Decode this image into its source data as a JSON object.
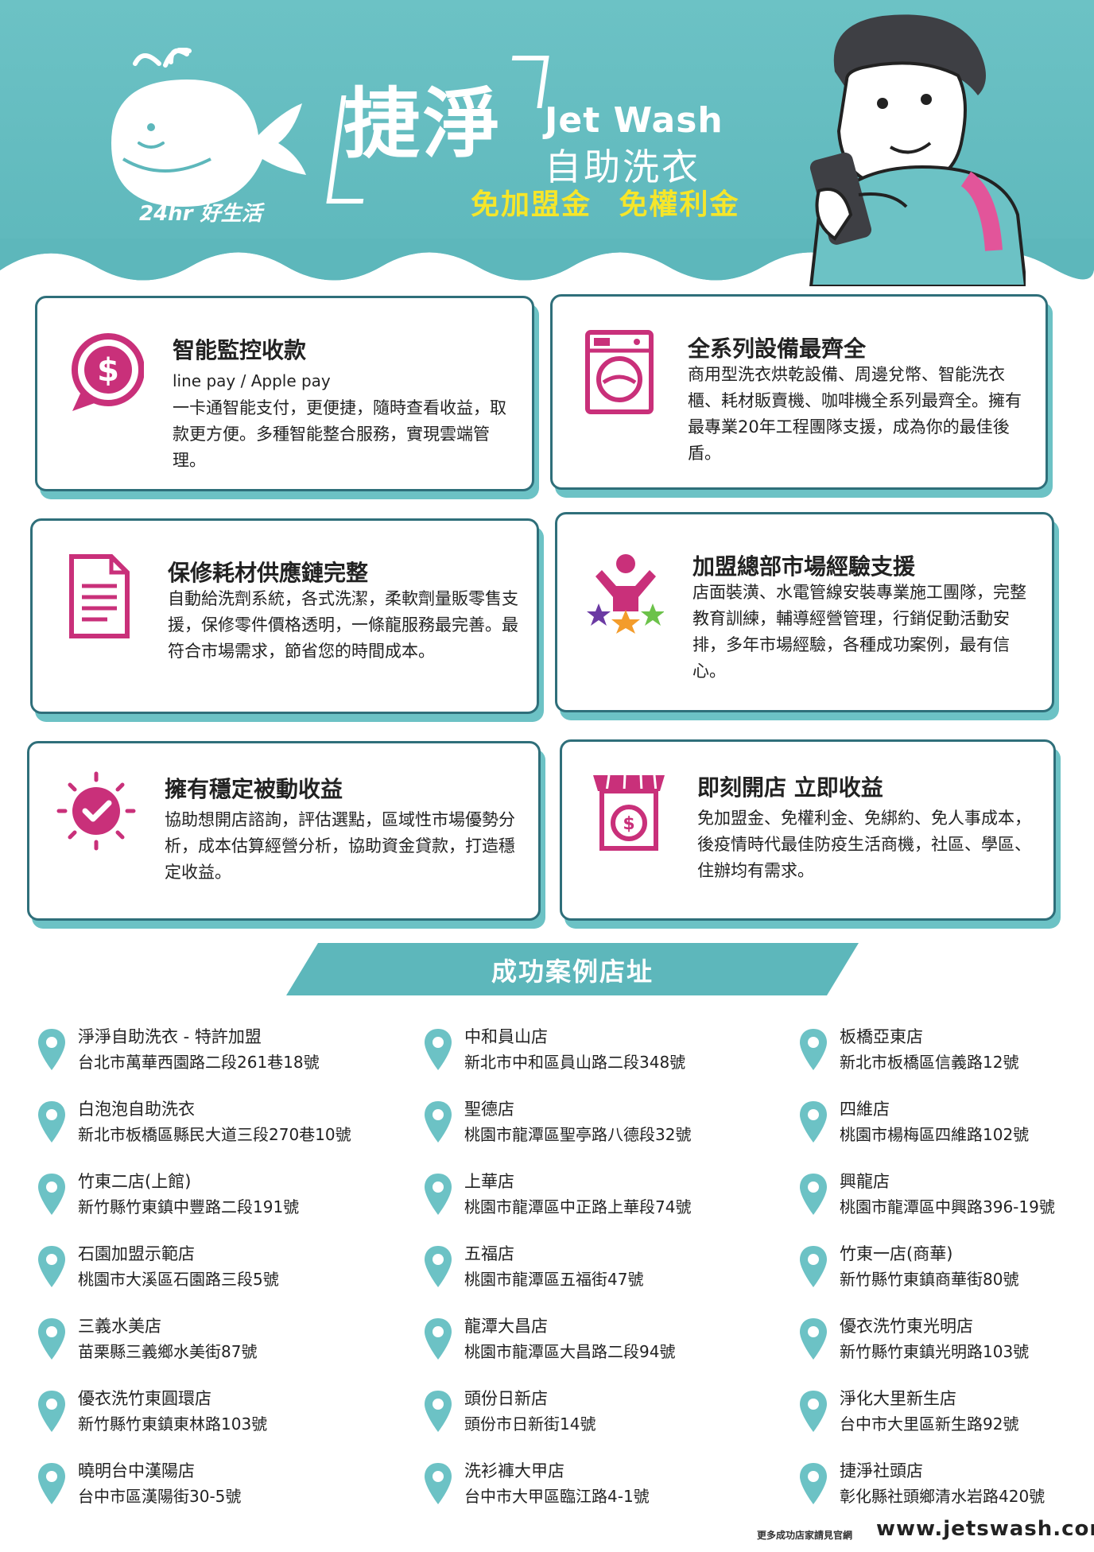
{
  "header": {
    "tagline": "24hr 好生活",
    "brand_cn": "捷淨",
    "brand_en": "Jet Wash",
    "brand_sub": "自助洗衣",
    "slogan": "免加盟金 免權利金"
  },
  "features": [
    {
      "title": "智能監控收款",
      "subtitle": "line pay / Apple pay",
      "body": "一卡通智能支付，更便捷，隨時查看收益，取款更方便。多種智能整合服務，實現雲端管理。",
      "icon": "dollar-speech-bubble-icon"
    },
    {
      "title": "全系列設備最齊全",
      "subtitle": "",
      "body": "商用型洗衣烘乾設備、周邊兌幣、智能洗衣櫃、耗材販賣機、咖啡機全系列最齊全。擁有最專業20年工程團隊支援，成為你的最佳後盾。",
      "icon": "washing-machine-icon"
    },
    {
      "title": "保修耗材供應鏈完整",
      "subtitle": "",
      "body": "自動給洗劑系統，各式洗潔，柔軟劑量販零售支援，保修零件價格透明，一條龍服務最完善。最符合市場需求，節省您的時間成本。",
      "icon": "document-icon"
    },
    {
      "title": "加盟總部市場經驗支援",
      "subtitle": "",
      "body": "店面裝潢、水電管線安裝專業施工團隊，完整教育訓練，輔導經營管理，行銷促動活動安排，多年市場經驗，各種成功案例，最有信心。",
      "icon": "person-stars-icon"
    },
    {
      "title": "擁有穩定被動收益",
      "subtitle": "",
      "body": "協助想開店諮詢，評估選點，區域性市場優勢分析，成本估算經營分析，協助資金貸款，打造穩定收益。",
      "icon": "check-badge-icon"
    },
    {
      "title": "即刻開店 立即收益",
      "subtitle": "",
      "body": "免加盟金、免權利金、免綁約、免人事成本，後疫情時代最佳防疫生活商機，社區、學區、住辦均有需求。",
      "icon": "store-washer-icon"
    }
  ],
  "stores_section": {
    "title": "成功案例店址",
    "columns": [
      [
        {
          "name": "淨淨自助洗衣 - 特許加盟",
          "address": "台北市萬華西園路二段261巷18號"
        },
        {
          "name": "白泡泡自助洗衣",
          "address": "新北市板橋區縣民大道三段270巷10號"
        },
        {
          "name": "竹東二店(上館)",
          "address": "新竹縣竹東鎮中豐路二段191號"
        },
        {
          "name": "石園加盟示範店",
          "address": "桃園市大溪區石園路三段5號"
        },
        {
          "name": "三義水美店",
          "address": "苗栗縣三義鄉水美街87號"
        },
        {
          "name": "優衣洗竹東圓環店",
          "address": "新竹縣竹東鎮東林路103號"
        },
        {
          "name": "曉明台中漢陽店",
          "address": "台中市區漢陽街30-5號"
        }
      ],
      [
        {
          "name": "中和員山店",
          "address": "新北市中和區員山路二段348號"
        },
        {
          "name": "聖德店",
          "address": "桃園市龍潭區聖亭路八德段32號"
        },
        {
          "name": "上華店",
          "address": "桃園市龍潭區中正路上華段74號"
        },
        {
          "name": "五福店",
          "address": "桃園市龍潭區五福街47號"
        },
        {
          "name": "龍潭大昌店",
          "address": "桃園市龍潭區大昌路二段94號"
        },
        {
          "name": "頭份日新店",
          "address": "頭份市日新街14號"
        },
        {
          "name": "洗衫褲大甲店",
          "address": "台中市大甲區臨江路4-1號"
        }
      ],
      [
        {
          "name": "板橋亞東店",
          "address": "新北市板橋區信義路12號"
        },
        {
          "name": "四維店",
          "address": "桃園市楊梅區四維路102號"
        },
        {
          "name": "興龍店",
          "address": "桃園市龍潭區中興路396-19號"
        },
        {
          "name": "竹東一店(商華)",
          "address": "新竹縣竹東鎮商華街80號"
        },
        {
          "name": "優衣洗竹東光明店",
          "address": "新竹縣竹東鎮光明路103號"
        },
        {
          "name": "淨化大里新生店",
          "address": "台中市大里區新生路92號"
        },
        {
          "name": "捷淨社頭店",
          "address": "彰化縣社頭鄉清水岩路420號"
        }
      ]
    ]
  },
  "footer": {
    "note": "更多成功店家請見官網",
    "url": "www.jetswash.com.tw"
  },
  "colors": {
    "teal": "#5db7bb",
    "card_border": "#2f6f7a",
    "yellow": "#f6e62a",
    "magenta": "#c9307a",
    "pin": "#6cc2c5"
  }
}
